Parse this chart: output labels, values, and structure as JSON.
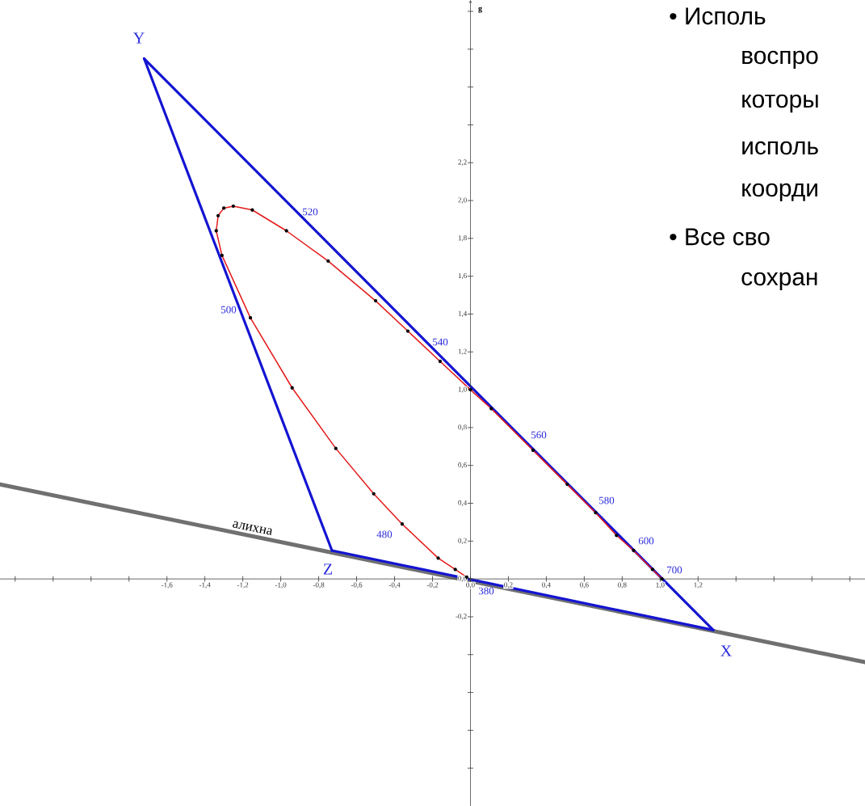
{
  "chart_data": {
    "type": "line",
    "ylabel": "g",
    "xlim": [
      -2.48,
      2.08
    ],
    "ylim": [
      -1.2,
      3.06
    ],
    "xticks": [
      {
        "value": -2.4,
        "label": null
      },
      {
        "value": -2.2,
        "label": null
      },
      {
        "value": -2.0,
        "label": null
      },
      {
        "value": -1.8,
        "label": null
      },
      {
        "value": -1.6,
        "label": "-1,6"
      },
      {
        "value": -1.4,
        "label": "-1,4"
      },
      {
        "value": -1.2,
        "label": "-1,2"
      },
      {
        "value": -1.0,
        "label": "-1,0"
      },
      {
        "value": -0.8,
        "label": "-0,8"
      },
      {
        "value": -0.6,
        "label": "-0,6"
      },
      {
        "value": -0.4,
        "label": "-0,4"
      },
      {
        "value": -0.2,
        "label": "-0,2"
      },
      {
        "value": 0,
        "label": "0,0"
      },
      {
        "value": 0.2,
        "label": "0,2"
      },
      {
        "value": 0.4,
        "label": "0,4"
      },
      {
        "value": 0.6,
        "label": "0,6"
      },
      {
        "value": 0.8,
        "label": "0,8"
      },
      {
        "value": 1.0,
        "label": "1,0"
      },
      {
        "value": 1.2,
        "label": "1,2"
      },
      {
        "value": 1.4,
        "label": null
      },
      {
        "value": 1.6,
        "label": null
      },
      {
        "value": 1.8,
        "label": null
      },
      {
        "value": 2.0,
        "label": null
      }
    ],
    "yticks": [
      {
        "value": -1.0,
        "label": null
      },
      {
        "value": -0.8,
        "label": null
      },
      {
        "value": -0.6,
        "label": null
      },
      {
        "value": -0.4,
        "label": null
      },
      {
        "value": -0.2,
        "label": "-0,2"
      },
      {
        "value": 0,
        "label": "0,0"
      },
      {
        "value": 0.2,
        "label": "0,2"
      },
      {
        "value": 0.4,
        "label": "0,4"
      },
      {
        "value": 0.6,
        "label": "0,6"
      },
      {
        "value": 0.8,
        "label": "0,8"
      },
      {
        "value": 1.0,
        "label": "1,0"
      },
      {
        "value": 1.2,
        "label": "1,2"
      },
      {
        "value": 1.4,
        "label": "1,4"
      },
      {
        "value": 1.6,
        "label": "1,6"
      },
      {
        "value": 1.8,
        "label": "1,8"
      },
      {
        "value": 2.0,
        "label": "2,0"
      },
      {
        "value": 2.2,
        "label": "2,2"
      },
      {
        "value": 2.4,
        "label": null
      },
      {
        "value": 2.6,
        "label": null
      },
      {
        "value": 2.8,
        "label": null
      },
      {
        "value": 3.0,
        "label": null
      }
    ],
    "series": [
      {
        "name": "алихна",
        "color": "#707070",
        "x": [
          -2.48,
          2.08
        ],
        "values": [
          0.5,
          -0.44
        ]
      },
      {
        "color": "#1414d2",
        "x": [
          -1.72,
          1.28
        ],
        "values": [
          2.75,
          -0.27
        ]
      },
      {
        "color": "#1414d2",
        "x": [
          -0.73,
          1.28
        ],
        "values": [
          0.15,
          -0.27
        ]
      },
      {
        "color": "#1414d2",
        "x": [
          -1.72,
          -0.73
        ],
        "values": [
          2.75,
          0.15
        ]
      },
      {
        "color": "#e41a1a",
        "marker": "circle",
        "x": [
          -0.02,
          -0.08,
          -0.17,
          -0.36,
          -0.51,
          -0.71,
          -0.94,
          -1.16,
          -1.31,
          -1.34,
          -1.33,
          -1.3,
          -1.25,
          -1.15,
          -0.97,
          -0.75,
          -0.5,
          -0.33,
          -0.16,
          0,
          0.11,
          0.33,
          0.51,
          0.66,
          0.77,
          0.86,
          0.96,
          1.01
        ],
        "values": [
          0.01,
          0.05,
          0.11,
          0.29,
          0.45,
          0.69,
          1.01,
          1.38,
          1.71,
          1.84,
          1.92,
          1.96,
          1.97,
          1.95,
          1.84,
          1.68,
          1.47,
          1.31,
          1.15,
          1.0,
          0.9,
          0.68,
          0.5,
          0.35,
          0.23,
          0.15,
          0.05,
          0
        ]
      }
    ],
    "annotations": [
      "380",
      "480",
      "500",
      "520",
      "540",
      "560",
      "580",
      "600",
      "700",
      "X",
      "Y",
      "Z",
      "• Исполь",
      "воспро",
      "которы",
      "исполь",
      "коорди",
      "• Все сво",
      "сохран"
    ]
  }
}
